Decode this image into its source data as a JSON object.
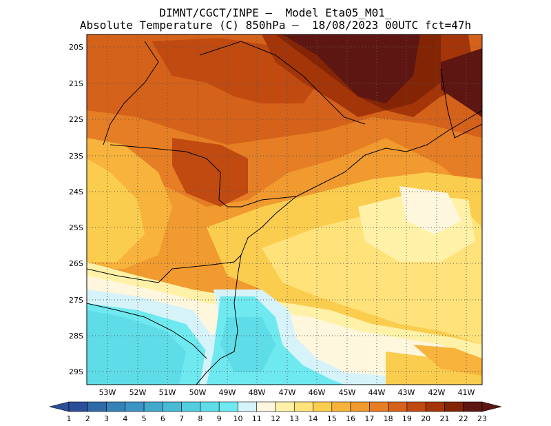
{
  "header": {
    "line1": "DIMNT/CGCT/INPE —  Model Eta05_M01_",
    "line2": "Absolute Temperature (C) 850hPa —  18/08/2023 00UTC fct=47h"
  },
  "map": {
    "lat_labels": [
      "20S",
      "21S",
      "22S",
      "23S",
      "24S",
      "25S",
      "26S",
      "27S",
      "28S",
      "29S"
    ],
    "lon_labels": [
      "53W",
      "52W",
      "51W",
      "50W",
      "49W",
      "48W",
      "47W",
      "46W",
      "45W",
      "44W",
      "43W",
      "42W",
      "41W"
    ],
    "grid_lines": "dotted"
  },
  "colorbar": {
    "labels": [
      "1",
      "2",
      "3",
      "4",
      "5",
      "6",
      "7",
      "8",
      "9",
      "10",
      "11",
      "12",
      "13",
      "14",
      "15",
      "16",
      "17",
      "18",
      "19",
      "20",
      "21",
      "22",
      "23"
    ],
    "colors": [
      "#2a4e9a",
      "#2f6aa8",
      "#3582b8",
      "#3b95c4",
      "#42a8cc",
      "#49bad3",
      "#53cde0",
      "#5edde8",
      "#6ee9f0",
      "#d6f3fa",
      "#fff6de",
      "#fff2a8",
      "#ffe27a",
      "#fbcd4e",
      "#f7b33c",
      "#f09a2f",
      "#e57e24",
      "#d5621a",
      "#c04a10",
      "#a33508",
      "#832405",
      "#5e1612"
    ]
  }
}
